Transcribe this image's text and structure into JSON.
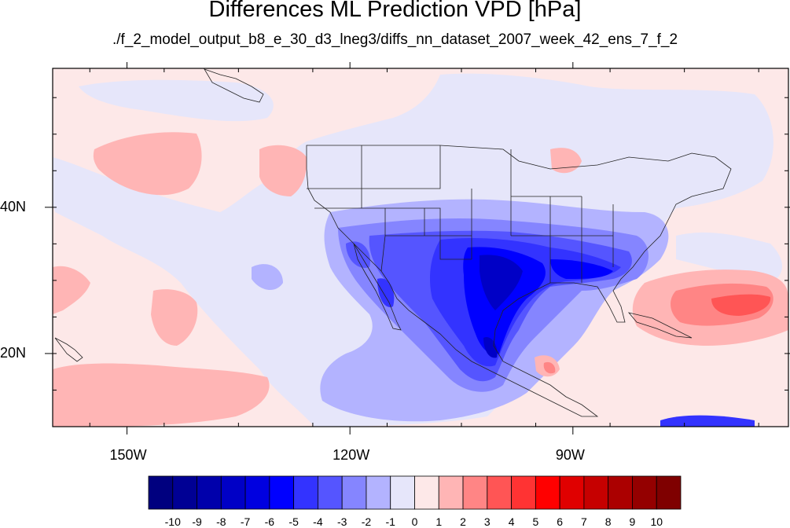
{
  "title": "Differences ML Prediction VPD [hPa]",
  "subtitle": "./f_2_model_output_b8_e_30_d3_lneg3/diffs_nn_dataset_2007_week_42_ens_7_f_2",
  "map": {
    "lon_range": [
      -160,
      -61
    ],
    "lat_range": [
      10,
      59
    ],
    "lon_ticks": [
      {
        "value": -150,
        "label": "150W"
      },
      {
        "value": -120,
        "label": "120W"
      },
      {
        "value": -90,
        "label": "90W"
      }
    ],
    "lat_ticks": [
      {
        "value": 40,
        "label": "40N"
      },
      {
        "value": 20,
        "label": "20N"
      }
    ],
    "background_color": "#fde8e8"
  },
  "colorbar": {
    "labels": [
      "-10",
      "-9",
      "-8",
      "-7",
      "-6",
      "-5",
      "-4",
      "-3",
      "-2",
      "-1",
      "0",
      "1",
      "2",
      "3",
      "4",
      "5",
      "6",
      "7",
      "8",
      "9",
      "10"
    ],
    "colors": [
      "#00007f",
      "#000094",
      "#0000ab",
      "#0000c6",
      "#0000e0",
      "#0000ff",
      "#3333ff",
      "#5555ff",
      "#8585ff",
      "#b3b3ff",
      "#e6e6fa",
      "#fde8e8",
      "#ffb5b5",
      "#ff8585",
      "#ff5555",
      "#ff3333",
      "#ff0000",
      "#e00000",
      "#c60000",
      "#ab0000",
      "#940000",
      "#7f0000"
    ]
  }
}
